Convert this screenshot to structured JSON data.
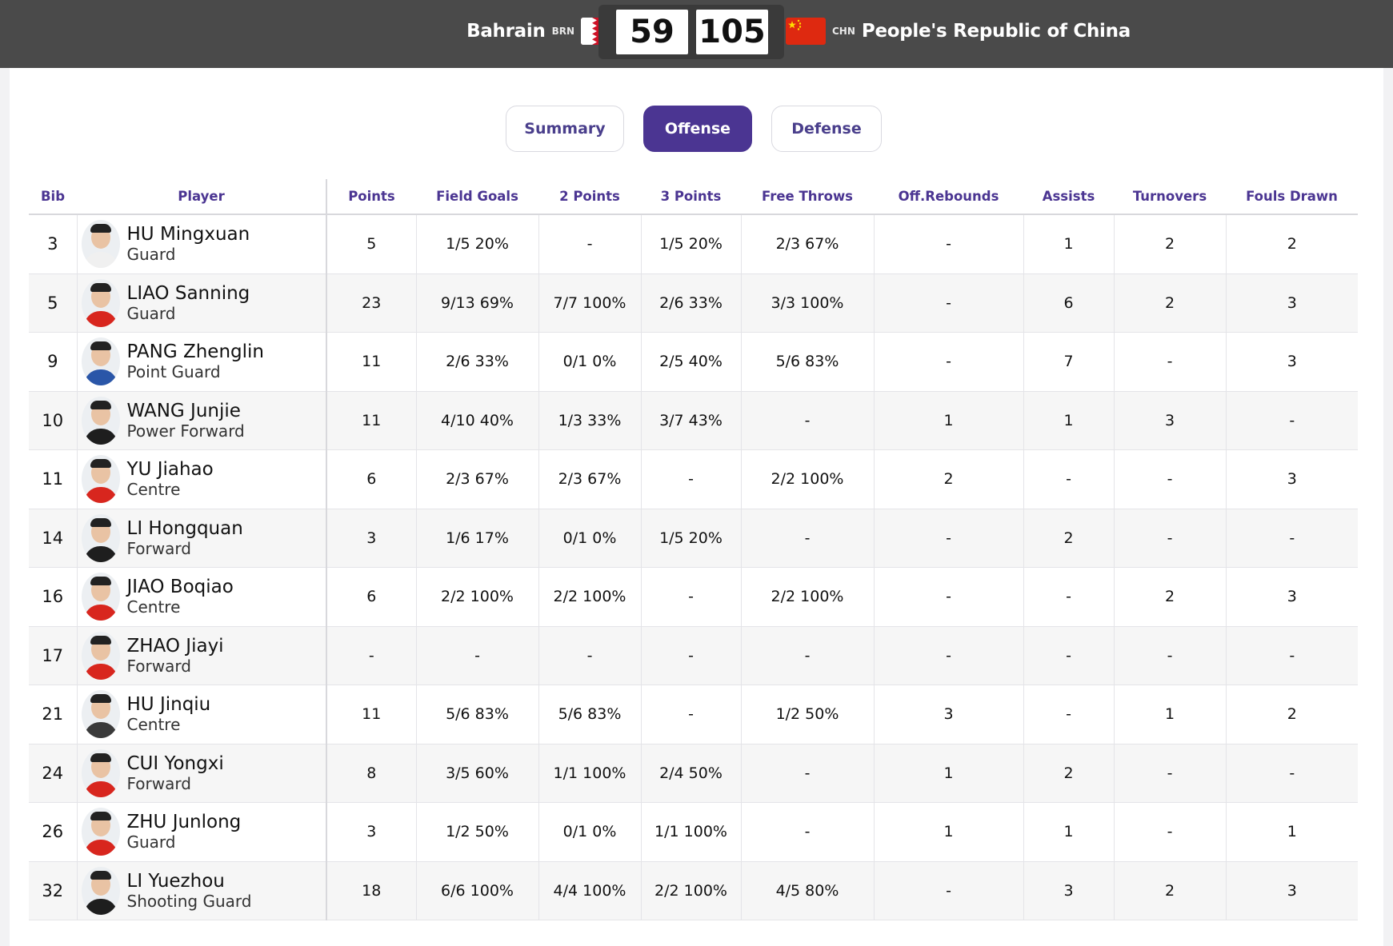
{
  "header": {
    "home": {
      "name": "Bahrain",
      "code": "BRN",
      "score": "59",
      "flag_icon": "bahrain-flag"
    },
    "away": {
      "name": "People's Republic of China",
      "code": "CHN",
      "score": "105",
      "flag_icon": "china-flag"
    }
  },
  "tabs": [
    {
      "label": "Summary",
      "active": false
    },
    {
      "label": "Offense",
      "active": true
    },
    {
      "label": "Defense",
      "active": false
    }
  ],
  "colors": {
    "accent": "#4b3592",
    "header_bg": "#4a4a4a"
  },
  "table": {
    "columns": [
      "Bib",
      "Player",
      "Points",
      "Field Goals",
      "2 Points",
      "3 Points",
      "Free Throws",
      "Off.Rebounds",
      "Assists",
      "Turnovers",
      "Fouls Drawn"
    ],
    "rows": [
      {
        "bib": "3",
        "name": "HU Mingxuan",
        "position": "Guard",
        "points": "5",
        "fg": "1/5 20%",
        "p2": "-",
        "p3": "1/5 20%",
        "ft": "2/3 67%",
        "oreb": "-",
        "ast": "1",
        "to": "2",
        "fd": "2",
        "jersey": "white"
      },
      {
        "bib": "5",
        "name": "LIAO Sanning",
        "position": "Guard",
        "points": "23",
        "fg": "9/13 69%",
        "p2": "7/7 100%",
        "p3": "2/6 33%",
        "ft": "3/3 100%",
        "oreb": "-",
        "ast": "6",
        "to": "2",
        "fd": "3",
        "jersey": "red"
      },
      {
        "bib": "9",
        "name": "PANG Zhenglin",
        "position": "Point Guard",
        "points": "11",
        "fg": "2/6 33%",
        "p2": "0/1 0%",
        "p3": "2/5 40%",
        "ft": "5/6 83%",
        "oreb": "-",
        "ast": "7",
        "to": "-",
        "fd": "3",
        "jersey": "blue"
      },
      {
        "bib": "10",
        "name": "WANG Junjie",
        "position": "Power Forward",
        "points": "11",
        "fg": "4/10 40%",
        "p2": "1/3 33%",
        "p3": "3/7 43%",
        "ft": "-",
        "oreb": "1",
        "ast": "1",
        "to": "3",
        "fd": "-",
        "jersey": "black"
      },
      {
        "bib": "11",
        "name": "YU Jiahao",
        "position": "Centre",
        "points": "6",
        "fg": "2/3 67%",
        "p2": "2/3 67%",
        "p3": "-",
        "ft": "2/2 100%",
        "oreb": "2",
        "ast": "-",
        "to": "-",
        "fd": "3",
        "jersey": "red"
      },
      {
        "bib": "14",
        "name": "LI Hongquan",
        "position": "Forward",
        "points": "3",
        "fg": "1/6 17%",
        "p2": "0/1 0%",
        "p3": "1/5 20%",
        "ft": "-",
        "oreb": "-",
        "ast": "2",
        "to": "-",
        "fd": "-",
        "jersey": "black"
      },
      {
        "bib": "16",
        "name": "JIAO Boqiao",
        "position": "Centre",
        "points": "6",
        "fg": "2/2 100%",
        "p2": "2/2 100%",
        "p3": "-",
        "ft": "2/2 100%",
        "oreb": "-",
        "ast": "-",
        "to": "2",
        "fd": "3",
        "jersey": "red"
      },
      {
        "bib": "17",
        "name": "ZHAO Jiayi",
        "position": "Forward",
        "points": "-",
        "fg": "-",
        "p2": "-",
        "p3": "-",
        "ft": "-",
        "oreb": "-",
        "ast": "-",
        "to": "-",
        "fd": "-",
        "jersey": "red"
      },
      {
        "bib": "21",
        "name": "HU Jinqiu",
        "position": "Centre",
        "points": "11",
        "fg": "5/6 83%",
        "p2": "5/6 83%",
        "p3": "-",
        "ft": "1/2 50%",
        "oreb": "3",
        "ast": "-",
        "to": "1",
        "fd": "2",
        "jersey": "dark"
      },
      {
        "bib": "24",
        "name": "CUI Yongxi",
        "position": "Forward",
        "points": "8",
        "fg": "3/5 60%",
        "p2": "1/1 100%",
        "p3": "2/4 50%",
        "ft": "-",
        "oreb": "1",
        "ast": "2",
        "to": "-",
        "fd": "-",
        "jersey": "red"
      },
      {
        "bib": "26",
        "name": "ZHU Junlong",
        "position": "Guard",
        "points": "3",
        "fg": "1/2 50%",
        "p2": "0/1 0%",
        "p3": "1/1 100%",
        "ft": "-",
        "oreb": "1",
        "ast": "1",
        "to": "-",
        "fd": "1",
        "jersey": "red"
      },
      {
        "bib": "32",
        "name": "LI Yuezhou",
        "position": "Shooting Guard",
        "points": "18",
        "fg": "6/6 100%",
        "p2": "4/4 100%",
        "p3": "2/2 100%",
        "ft": "4/5 80%",
        "oreb": "-",
        "ast": "3",
        "to": "2",
        "fd": "3",
        "jersey": "black"
      }
    ]
  }
}
